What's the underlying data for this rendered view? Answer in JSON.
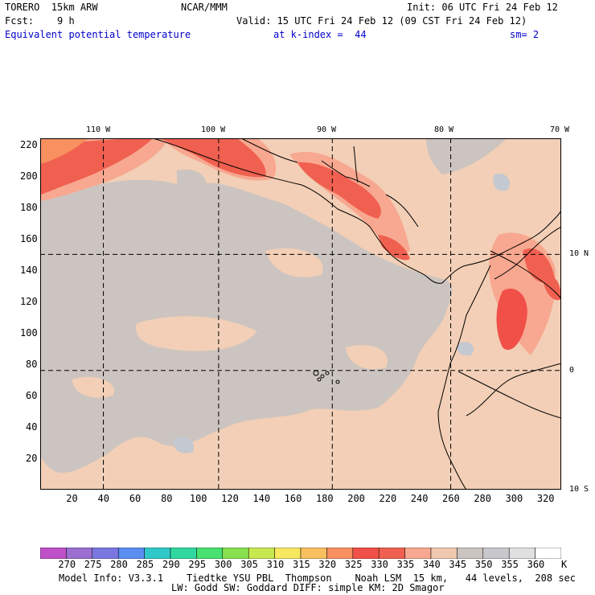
{
  "header": {
    "model": "TORERO  15km ARW",
    "org": "NCAR/MMM",
    "init": "Init: 06 UTC Fri 24 Feb 12",
    "fcst": "Fcst:    9 h",
    "valid": "Valid: 15 UTC Fri 24 Feb 12 (09 CST Fri 24 Feb 12)",
    "field": "Equivalent potential temperature",
    "level": "at k-index =  44",
    "smooth": "sm= 2"
  },
  "map": {
    "lon_labels": [
      "110 W",
      "100 W",
      "90 W",
      "80 W",
      "70 W"
    ],
    "lat_labels": [
      "10 N",
      "0",
      "10 S"
    ],
    "x_ticks": [
      "20",
      "40",
      "60",
      "80",
      "100",
      "120",
      "140",
      "160",
      "180",
      "200",
      "220",
      "240",
      "260",
      "280",
      "300",
      "320"
    ],
    "y_ticks": [
      "220",
      "200",
      "180",
      "160",
      "140",
      "120",
      "100",
      "80",
      "60",
      "40",
      "20"
    ],
    "grid_x": [
      40,
      113,
      185,
      260
    ],
    "grid_y": [
      150,
      76
    ]
  },
  "colorbar": {
    "labels": [
      "270",
      "275",
      "280",
      "285",
      "290",
      "295",
      "300",
      "305",
      "310",
      "315",
      "320",
      "325",
      "330",
      "335",
      "340",
      "345",
      "350",
      "355",
      "360"
    ],
    "unit": "K",
    "colors": [
      "#c050c8",
      "#9a6fd0",
      "#7a78e0",
      "#5a8ef0",
      "#30c8c8",
      "#30d8a0",
      "#48e070",
      "#88e050",
      "#c8e850",
      "#f8e860",
      "#f8c060",
      "#f89060",
      "#f05048",
      "#f06050",
      "#f8a890",
      "#f0c8b0",
      "#ccc4c0",
      "#c8c8cc",
      "#e0e0e0",
      "#ffffff"
    ]
  },
  "footer": {
    "line1": "Model Info: V3.3.1    Tiedtke YSU PBL  Thompson    Noah LSM  15 km,   44 levels,  208 sec",
    "line2": "LW: Godd SW: Goddard DIFF: simple KM: 2D Smagor"
  }
}
